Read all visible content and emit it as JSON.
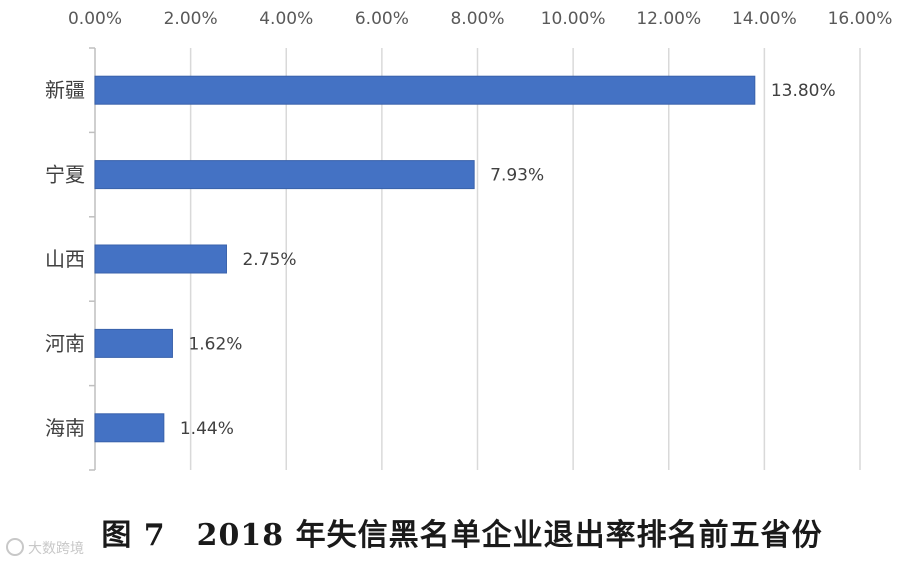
{
  "chart_data": {
    "type": "bar",
    "orientation": "horizontal",
    "categories": [
      "新疆",
      "宁夏",
      "山西",
      "河南",
      "海南"
    ],
    "values": [
      13.8,
      7.93,
      2.75,
      1.62,
      1.44
    ],
    "data_labels": [
      "13.80%",
      "7.93%",
      "2.75%",
      "1.62%",
      "1.44%"
    ],
    "x_ticks": [
      "0.00%",
      "2.00%",
      "4.00%",
      "6.00%",
      "8.00%",
      "10.00%",
      "12.00%",
      "14.00%",
      "16.00%"
    ],
    "xlim": [
      0,
      16
    ],
    "x_axis_position": "top",
    "grid": true,
    "bar_color": "#4472c4",
    "title": "",
    "xlabel": "",
    "ylabel": ""
  },
  "caption": "图 7　2018 年失信黑名单企业退出率排名前五省份",
  "watermark": "大数跨境"
}
